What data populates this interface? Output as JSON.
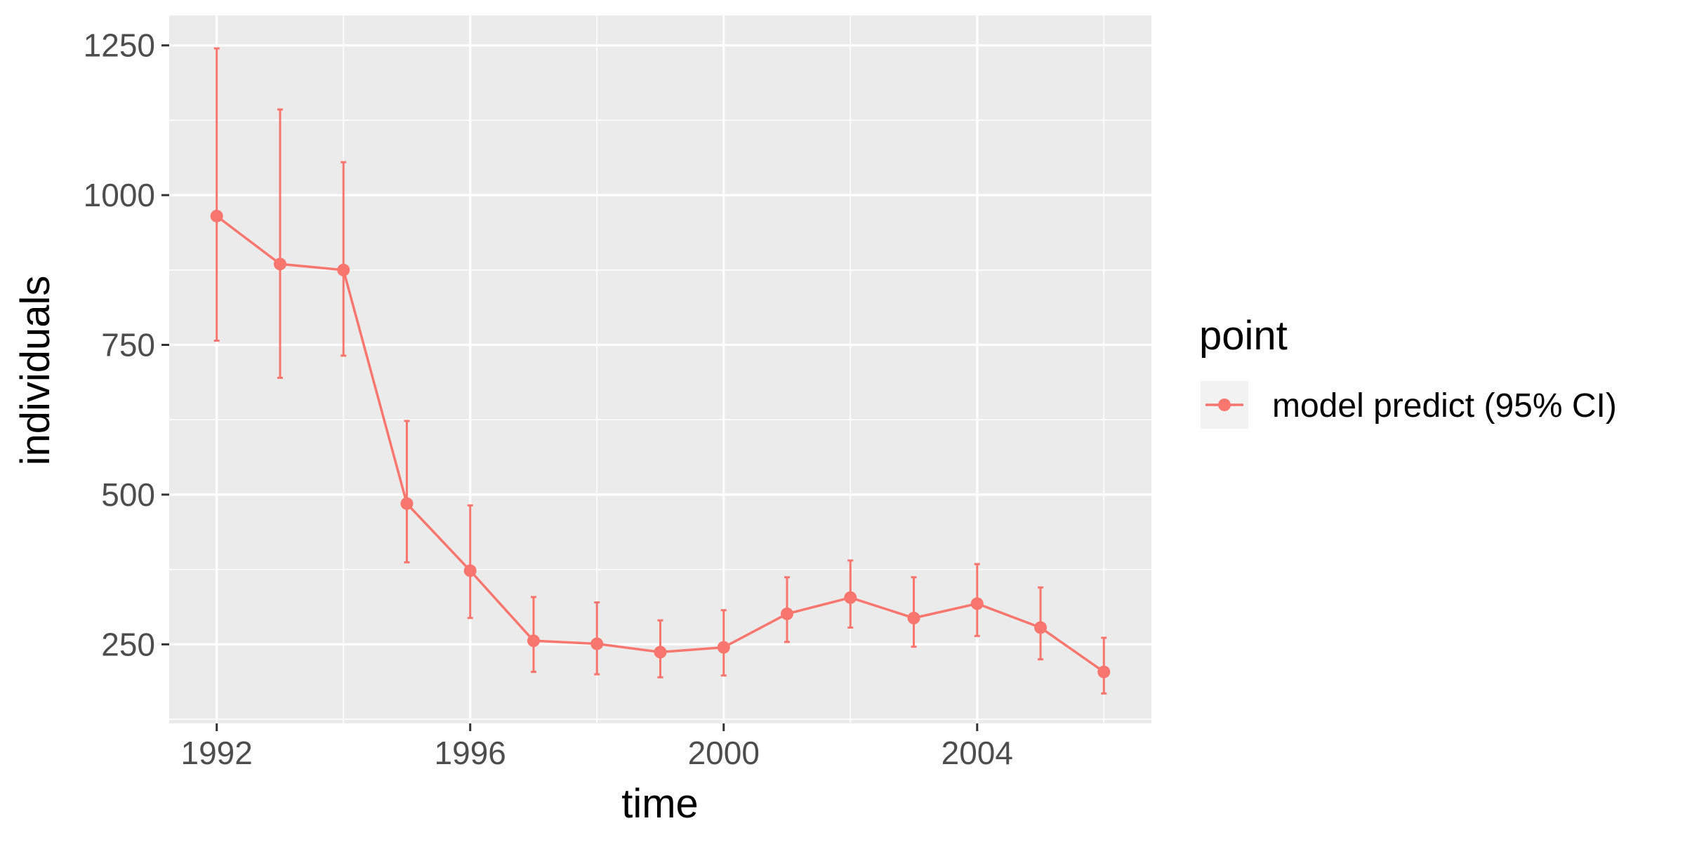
{
  "chart_data": {
    "type": "line",
    "title": "",
    "xlabel": "time",
    "ylabel": "individuals",
    "xlim": [
      1991.25,
      2006.75
    ],
    "ylim": [
      118,
      1300
    ],
    "x_ticks": [
      1992,
      1996,
      2000,
      2004
    ],
    "y_ticks": [
      250,
      500,
      750,
      1000,
      1250
    ],
    "grid": true,
    "legend_position": "right",
    "legend_title": "point",
    "colors": {
      "series": "#F8766D",
      "panel": "#EBEBEB",
      "grid": "#FFFFFF",
      "legend_key": "#F2F2F2"
    },
    "series": [
      {
        "name": "model predict (95% CI)",
        "x": [
          1992,
          1993,
          1994,
          1995,
          1996,
          1997,
          1998,
          1999,
          2000,
          2001,
          2002,
          2003,
          2004,
          2005,
          2006
        ],
        "y": [
          965,
          885,
          875,
          485,
          373,
          256,
          251,
          237,
          245,
          301,
          328,
          294,
          318,
          278,
          204
        ],
        "lower": [
          757,
          695,
          732,
          387,
          294,
          204,
          200,
          195,
          198,
          254,
          278,
          246,
          264,
          225,
          168
        ],
        "upper": [
          1245,
          1143,
          1055,
          623,
          482,
          329,
          320,
          290,
          307,
          362,
          390,
          362,
          384,
          345,
          261
        ]
      }
    ]
  }
}
